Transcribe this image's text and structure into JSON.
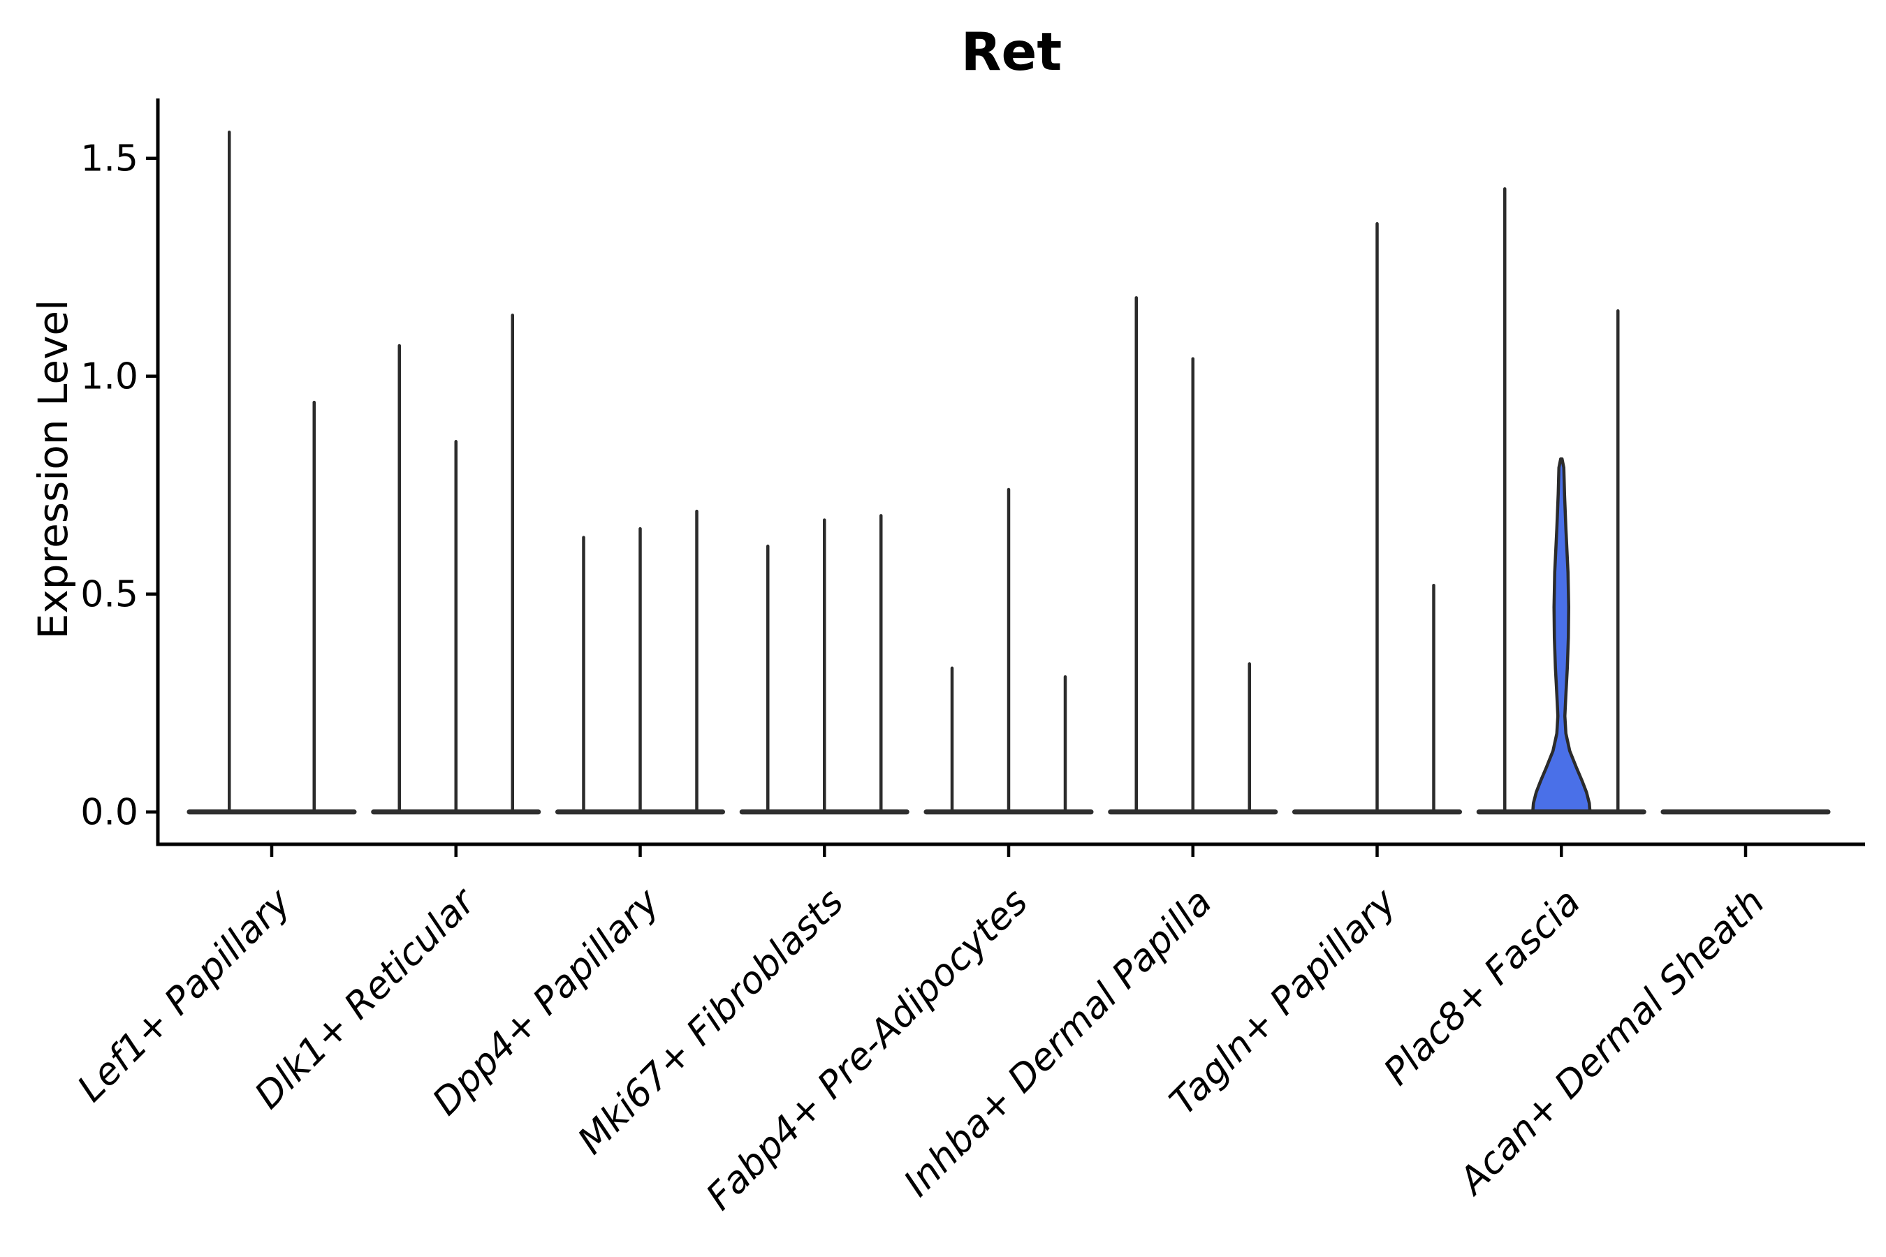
{
  "title": "Ret",
  "chart_data": {
    "type": "violin",
    "title": "Ret",
    "xlabel": "",
    "ylabel": "Expression Level",
    "ytick_labels": [
      "0.0",
      "0.5",
      "1.0",
      "1.5"
    ],
    "ytick_values": [
      0.0,
      0.5,
      1.0,
      1.5
    ],
    "ylim": [
      -0.074,
      1.64
    ],
    "grid": false,
    "legend": "none",
    "colors": {
      "line": "#2b2b2b",
      "baseline_bar": "#2e2e2e",
      "highlight_fill": "#4a70e8",
      "text": "#000000"
    },
    "categories": [
      "Lef1+ Papillary",
      "Dlk1+ Reticular",
      "Dpp4+ Papillary",
      "Mki67+ Fibroblasts",
      "Fabp4+ Pre-Adipocytes",
      "Inhba+ Dermal Papilla",
      "Tagln+ Papillary",
      "Plac8+ Fascia",
      "Acan+ Dermal Sheath"
    ],
    "groups": [
      {
        "category": "Lef1+ Papillary",
        "violins": [
          {
            "max": 1.56
          },
          {
            "max": 0.94
          }
        ]
      },
      {
        "category": "Dlk1+ Reticular",
        "violins": [
          {
            "max": 1.07
          },
          {
            "max": 0.85
          },
          {
            "max": 1.14
          }
        ]
      },
      {
        "category": "Dpp4+ Papillary",
        "violins": [
          {
            "max": 0.63
          },
          {
            "max": 0.65
          },
          {
            "max": 0.69
          }
        ]
      },
      {
        "category": "Mki67+ Fibroblasts",
        "violins": [
          {
            "max": 0.61
          },
          {
            "max": 0.67
          },
          {
            "max": 0.68
          }
        ]
      },
      {
        "category": "Fabp4+ Pre-Adipocytes",
        "violins": [
          {
            "max": 0.33
          },
          {
            "max": 0.74
          },
          {
            "max": 0.31
          }
        ]
      },
      {
        "category": "Inhba+ Dermal Papilla",
        "violins": [
          {
            "max": 1.18
          },
          {
            "max": 1.04
          },
          {
            "max": 0.34
          }
        ]
      },
      {
        "category": "Tagln+ Papillary",
        "violins": [
          {
            "max": 0
          },
          {
            "max": 1.35
          },
          {
            "max": 0.52
          }
        ]
      },
      {
        "category": "Plac8+ Fascia",
        "violins": [
          {
            "max": 1.43
          },
          {
            "max": 0.81,
            "filled": true,
            "profile": [
              [
                0.81,
                1
              ],
              [
                0.79,
                3.5
              ],
              [
                0.73,
                4.5
              ],
              [
                0.65,
                6.5
              ],
              [
                0.55,
                9.5
              ],
              [
                0.47,
                10.5
              ],
              [
                0.4,
                10
              ],
              [
                0.33,
                8.5
              ],
              [
                0.27,
                6.5
              ],
              [
                0.22,
                5
              ],
              [
                0.18,
                6.5
              ],
              [
                0.14,
                12
              ],
              [
                0.1,
                22
              ],
              [
                0.07,
                30
              ],
              [
                0.045,
                36
              ],
              [
                0.02,
                40
              ],
              [
                0.0,
                41
              ]
            ]
          },
          {
            "max": 1.15
          }
        ]
      },
      {
        "category": "Acan+ Dermal Sheath",
        "violins": [
          {
            "max": 0
          },
          {
            "max": 0
          },
          {
            "max": 0
          }
        ]
      }
    ]
  }
}
